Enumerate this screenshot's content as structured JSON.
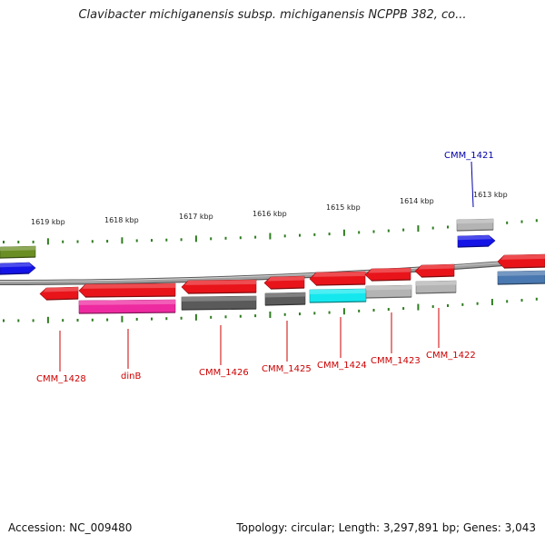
{
  "title": "Clavibacter michiganensis subsp. michiganensis NCPPB 382, co...",
  "footer": {
    "accession": "Accession: NC_009480",
    "summary": "Topology: circular; Length: 3,297,891 bp; Genes: 3,043"
  },
  "colors": {
    "backbone": "#8a8a8a",
    "tick": "#2e7d1f",
    "gene_label": "#cc0000",
    "selected_label": "#0000aa",
    "red": "#e8141a",
    "magenta": "#ee2aa0",
    "dark_gray": "#5a5a5a",
    "light_gray": "#b4b4b4",
    "cyan": "#14e8ee",
    "blue": "#1414e6",
    "olive": "#6a8e23",
    "steel_blue": "#4a78b0"
  },
  "scale_labels": [
    "1619 kbp",
    "1618 kbp",
    "1617 kbp",
    "1616 kbp",
    "1615 kbp",
    "1614 kbp",
    "1613 kbp"
  ],
  "gene_labels": [
    {
      "text": "CMM_1428",
      "selected": false
    },
    {
      "text": "dinB",
      "selected": false
    },
    {
      "text": "CMM_1426",
      "selected": false
    },
    {
      "text": "CMM_1425",
      "selected": false
    },
    {
      "text": "CMM_1424",
      "selected": false
    },
    {
      "text": "CMM_1423",
      "selected": false
    },
    {
      "text": "CMM_1422",
      "selected": false
    },
    {
      "text": "CMM_1421",
      "selected": true
    }
  ]
}
